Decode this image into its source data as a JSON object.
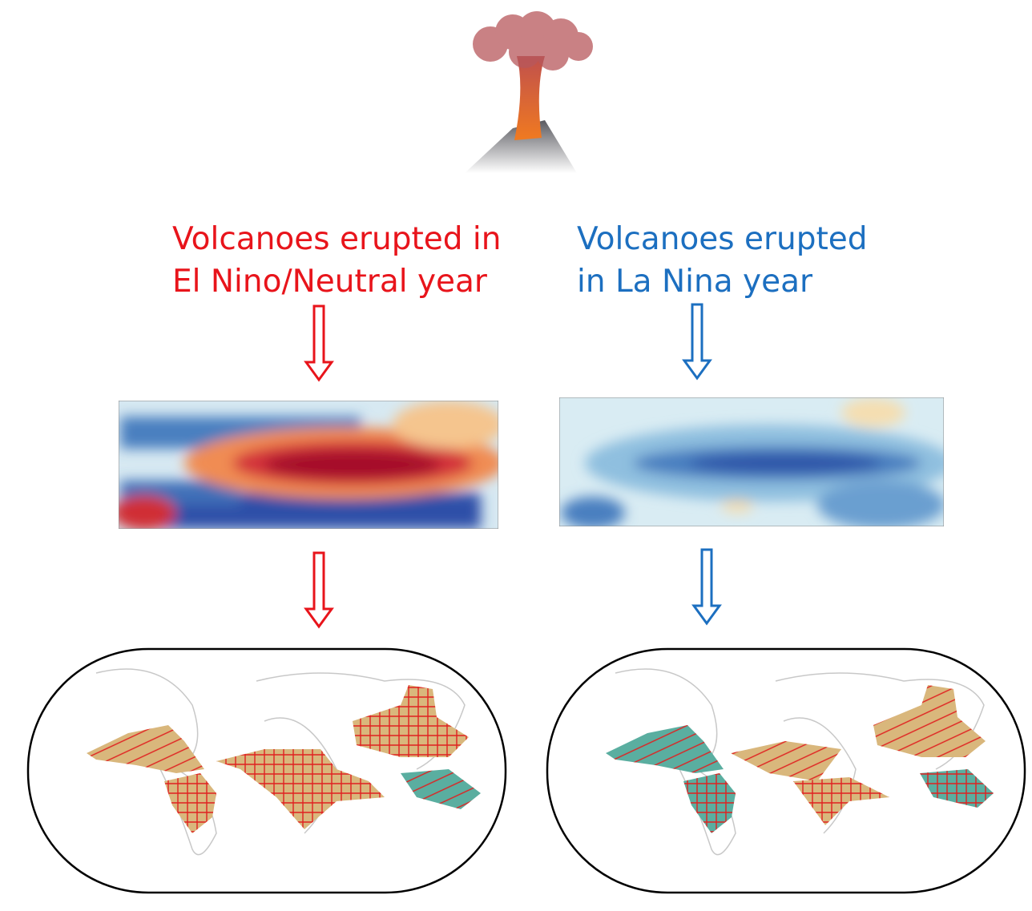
{
  "left": {
    "title_lines": [
      "Volcanoes erupted in",
      "El Nino/Neutral year"
    ]
  },
  "right": {
    "title_lines": [
      "Volcanoes erupted",
      "in La Nina year"
    ]
  }
}
